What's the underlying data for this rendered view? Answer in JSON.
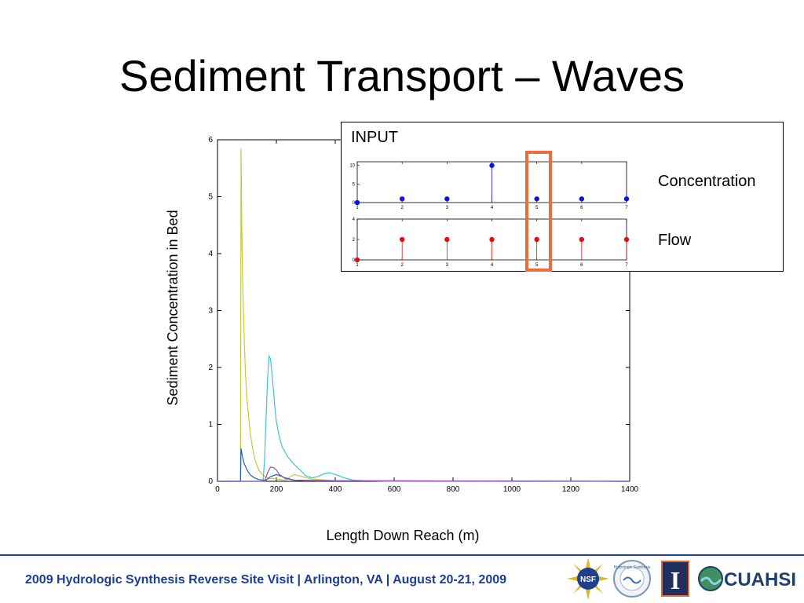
{
  "slide": {
    "title": "Sediment Transport – Waves",
    "footer": "2009 Hydrologic Synthesis Reverse Site Visit | Arlington, VA | August 20-21, 2009",
    "logos": {
      "cuahsi": "CUAHSI",
      "illinois": "I",
      "nsf": "NSF",
      "middle_seal": "Hydrologic Synthesis"
    }
  },
  "colors": {
    "footer_text": "#1a3d99",
    "highlight": "#f06a3a",
    "concentration_marker": "#1010e0",
    "flow_marker": "#e01010"
  },
  "inset": {
    "title": "INPUT",
    "concentration_label": "Concentration",
    "flow_label": "Flow"
  },
  "chart_data": [
    {
      "type": "line",
      "title": "",
      "xlabel": "Length Down Reach (m)",
      "ylabel": "Sediment Concentration in Bed",
      "xlim": [
        0,
        1400
      ],
      "ylim": [
        0,
        6
      ],
      "x_ticks": [
        0,
        200,
        400,
        600,
        800,
        1000,
        1200,
        1400
      ],
      "y_ticks": [
        0,
        1,
        2,
        3,
        4,
        5,
        6
      ],
      "grid": false,
      "series": [
        {
          "color": "#c8c83c",
          "x": [
            0,
            78,
            80,
            82,
            85,
            90,
            95,
            100,
            110,
            120,
            130,
            140,
            150,
            160,
            170,
            180,
            190,
            200,
            230,
            260,
            290,
            320,
            400,
            1400
          ],
          "y": [
            0,
            0,
            5.85,
            4.6,
            3.6,
            2.6,
            1.9,
            1.45,
            0.9,
            0.55,
            0.33,
            0.2,
            0.13,
            0.09,
            0.06,
            0.05,
            0.05,
            0.04,
            0.02,
            0.12,
            0.08,
            0.04,
            0.01,
            0
          ]
        },
        {
          "color": "#3cc6d2",
          "x": [
            0,
            155,
            160,
            165,
            170,
            175,
            180,
            185,
            190,
            195,
            200,
            210,
            220,
            240,
            260,
            280,
            300,
            320,
            340,
            360,
            380,
            400,
            430,
            460,
            500,
            600,
            1400
          ],
          "y": [
            0,
            0,
            0.4,
            1.1,
            1.8,
            2.2,
            2.15,
            1.9,
            1.6,
            1.3,
            1.05,
            0.78,
            0.6,
            0.42,
            0.3,
            0.2,
            0.1,
            0.06,
            0.08,
            0.13,
            0.15,
            0.12,
            0.06,
            0.02,
            0.01,
            0,
            0
          ]
        },
        {
          "color": "#1f5fbf",
          "x": [
            0,
            78,
            80,
            84,
            90,
            100,
            110,
            125,
            140,
            155,
            165,
            180,
            200,
            230,
            260,
            400,
            1400
          ],
          "y": [
            0,
            0,
            0.58,
            0.45,
            0.32,
            0.2,
            0.12,
            0.06,
            0.03,
            0.02,
            0.02,
            0.08,
            0.12,
            0.06,
            0.02,
            0.01,
            0
          ]
        },
        {
          "color": "#8a4fb8",
          "x": [
            0,
            160,
            170,
            180,
            190,
            200,
            210,
            230,
            260,
            300,
            1400
          ],
          "y": [
            0,
            0,
            0.15,
            0.25,
            0.24,
            0.2,
            0.12,
            0.05,
            0.02,
            0.01,
            0
          ]
        }
      ]
    },
    {
      "type": "scatter",
      "title": "",
      "xlabel": "",
      "ylabel": "",
      "xlim": [
        1,
        7
      ],
      "ylim": [
        0,
        11
      ],
      "x_ticks": [
        1,
        2,
        3,
        4,
        5,
        6,
        7
      ],
      "y_ticks": [
        0,
        5,
        10
      ],
      "series": [
        {
          "name": "Concentration",
          "color": "#1010e0",
          "x": [
            1,
            2,
            3,
            4,
            5,
            6,
            7
          ],
          "y": [
            0,
            1,
            1,
            10,
            1,
            1,
            1
          ]
        }
      ]
    },
    {
      "type": "scatter",
      "title": "",
      "xlabel": "",
      "ylabel": "",
      "xlim": [
        1,
        7
      ],
      "ylim": [
        0,
        4
      ],
      "x_ticks": [
        1,
        2,
        3,
        4,
        5,
        6,
        7
      ],
      "y_ticks": [
        0,
        2,
        4
      ],
      "series": [
        {
          "name": "Flow",
          "color": "#e01010",
          "x": [
            1,
            2,
            3,
            4,
            5,
            6,
            7
          ],
          "y": [
            0,
            2,
            2,
            2,
            2,
            2,
            2
          ]
        }
      ]
    }
  ]
}
